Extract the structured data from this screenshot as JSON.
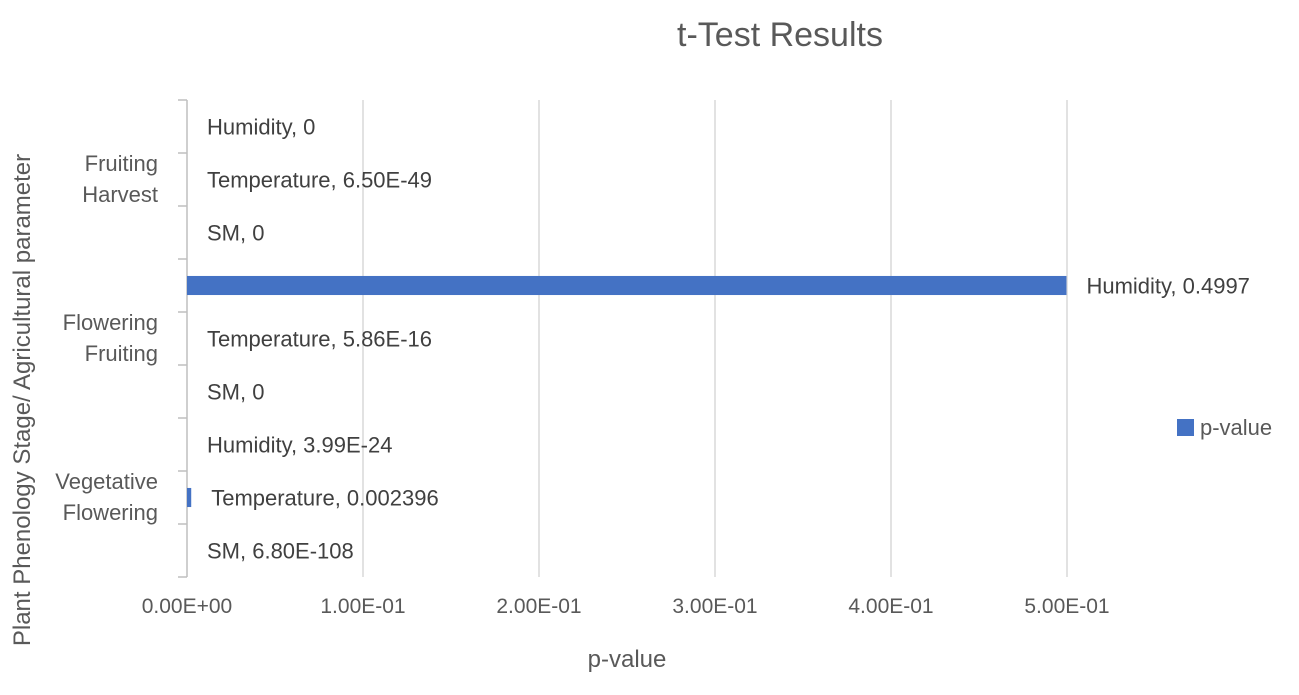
{
  "chart_data": {
    "type": "bar",
    "orientation": "horizontal",
    "title": "t-Test Results",
    "xlabel": "p-value",
    "ylabel": "Plant Phenology Stage/ Agricultural parameter",
    "xlim": [
      0,
      0.5
    ],
    "x_ticks": [
      0,
      0.1,
      0.2,
      0.3,
      0.4,
      0.5
    ],
    "x_tick_labels": [
      "0.00E+00",
      "1.00E-01",
      "2.00E-01",
      "3.00E-01",
      "4.00E-01",
      "5.00E-01"
    ],
    "grid": "vertical",
    "legend_position": "right",
    "groups": [
      {
        "label": [
          "Vegetative",
          "Flowering"
        ],
        "bars": 3
      },
      {
        "label": [
          "Flowering",
          "Fruiting"
        ],
        "bars": 3
      },
      {
        "label": [
          "Fruiting",
          "Harvest"
        ],
        "bars": 3
      }
    ],
    "categories": [
      "SM",
      "Temperature",
      "Humidity",
      "SM",
      "Temperature",
      "Humidity",
      "SM",
      "Temperature",
      "Humidity"
    ],
    "series": [
      {
        "name": "p-value",
        "color": "#4472c4",
        "values": [
          6.8e-108,
          0.002396,
          3.99e-24,
          0,
          5.86e-16,
          0.4997,
          0,
          6.5e-49,
          0
        ],
        "data_labels": [
          "SM, 6.80E-108",
          "Temperature, 0.002396",
          "Humidity, 3.99E-24",
          "SM, 0",
          "Temperature, 5.86E-16",
          "Humidity, 0.4997",
          "SM, 0",
          "Temperature, 6.50E-49",
          "Humidity, 0"
        ]
      }
    ]
  }
}
